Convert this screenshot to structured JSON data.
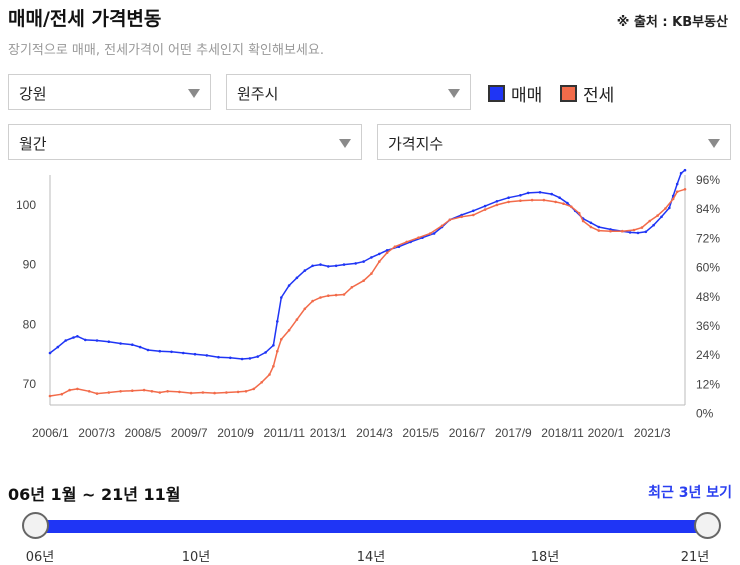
{
  "header": {
    "title": "매매/전세 가격변동",
    "source": "※ 출처 : KB부동산",
    "subtitle": "장기적으로 매매, 전세가격이 어떤 추세인지 확인해보세요."
  },
  "filters": {
    "region": "강원",
    "city": "원주시",
    "period": "월간",
    "metric": "가격지수"
  },
  "legend": [
    {
      "label": "매매",
      "color": "#1f35f5"
    },
    {
      "label": "전세",
      "color": "#f26b4a"
    }
  ],
  "chart_data": {
    "type": "line",
    "x_tick_labels": [
      "2006/1",
      "2007/3",
      "2008/5",
      "2009/7",
      "2010/9",
      "2011/11",
      "2013/1",
      "2014/3",
      "2015/5",
      "2016/7",
      "2017/9",
      "2018/11",
      "2020/1",
      "2021/3"
    ],
    "y_left_ticks": [
      "100",
      "90",
      "80",
      "70"
    ],
    "y_right_ticks": [
      "96%",
      "84%",
      "72%",
      "60%",
      "48%",
      "36%",
      "24%",
      "12%",
      "0%"
    ],
    "y_left_range": [
      66.5,
      105
    ],
    "grid": false,
    "series": [
      {
        "name": "매매",
        "color": "#1f35f5",
        "points": [
          [
            2006.0,
            75.2
          ],
          [
            2006.2,
            76.2
          ],
          [
            2006.4,
            77.3
          ],
          [
            2006.6,
            77.8
          ],
          [
            2006.7,
            78.0
          ],
          [
            2006.9,
            77.4
          ],
          [
            2007.2,
            77.3
          ],
          [
            2007.5,
            77.1
          ],
          [
            2007.8,
            76.8
          ],
          [
            2008.1,
            76.6
          ],
          [
            2008.3,
            76.2
          ],
          [
            2008.5,
            75.7
          ],
          [
            2008.8,
            75.5
          ],
          [
            2009.1,
            75.4
          ],
          [
            2009.4,
            75.2
          ],
          [
            2009.7,
            75.0
          ],
          [
            2010.0,
            74.8
          ],
          [
            2010.3,
            74.5
          ],
          [
            2010.6,
            74.4
          ],
          [
            2010.9,
            74.2
          ],
          [
            2011.1,
            74.3
          ],
          [
            2011.3,
            74.6
          ],
          [
            2011.5,
            75.3
          ],
          [
            2011.7,
            76.5
          ],
          [
            2011.8,
            80.5
          ],
          [
            2011.9,
            84.5
          ],
          [
            2012.1,
            86.5
          ],
          [
            2012.3,
            87.8
          ],
          [
            2012.5,
            89.0
          ],
          [
            2012.7,
            89.8
          ],
          [
            2012.9,
            90.0
          ],
          [
            2013.1,
            89.7
          ],
          [
            2013.3,
            89.8
          ],
          [
            2013.5,
            90.0
          ],
          [
            2013.8,
            90.2
          ],
          [
            2014.0,
            90.5
          ],
          [
            2014.2,
            91.2
          ],
          [
            2014.4,
            91.8
          ],
          [
            2014.6,
            92.4
          ],
          [
            2014.9,
            93.0
          ],
          [
            2015.2,
            93.8
          ],
          [
            2015.5,
            94.5
          ],
          [
            2015.8,
            95.2
          ],
          [
            2016.0,
            96.3
          ],
          [
            2016.2,
            97.5
          ],
          [
            2016.5,
            98.3
          ],
          [
            2016.8,
            99.0
          ],
          [
            2017.1,
            99.8
          ],
          [
            2017.4,
            100.6
          ],
          [
            2017.7,
            101.2
          ],
          [
            2018.0,
            101.6
          ],
          [
            2018.2,
            102.0
          ],
          [
            2018.5,
            102.1
          ],
          [
            2018.8,
            101.8
          ],
          [
            2019.0,
            101.2
          ],
          [
            2019.2,
            100.3
          ],
          [
            2019.4,
            99.0
          ],
          [
            2019.6,
            97.7
          ],
          [
            2019.8,
            97.0
          ],
          [
            2020.0,
            96.3
          ],
          [
            2020.3,
            95.9
          ],
          [
            2020.6,
            95.6
          ],
          [
            2020.8,
            95.4
          ],
          [
            2021.0,
            95.3
          ],
          [
            2021.2,
            95.5
          ],
          [
            2021.4,
            96.6
          ],
          [
            2021.6,
            98.0
          ],
          [
            2021.8,
            99.5
          ],
          [
            2021.9,
            101.5
          ],
          [
            2022.0,
            103.5
          ],
          [
            2022.1,
            105.3
          ],
          [
            2022.2,
            105.8
          ]
        ]
      },
      {
        "name": "전세",
        "color": "#f26b4a",
        "points": [
          [
            2006.0,
            68.0
          ],
          [
            2006.3,
            68.3
          ],
          [
            2006.5,
            69.0
          ],
          [
            2006.7,
            69.2
          ],
          [
            2007.0,
            68.8
          ],
          [
            2007.2,
            68.4
          ],
          [
            2007.5,
            68.6
          ],
          [
            2007.8,
            68.8
          ],
          [
            2008.1,
            68.9
          ],
          [
            2008.4,
            69.0
          ],
          [
            2008.6,
            68.8
          ],
          [
            2008.8,
            68.6
          ],
          [
            2009.0,
            68.8
          ],
          [
            2009.3,
            68.7
          ],
          [
            2009.6,
            68.5
          ],
          [
            2009.9,
            68.6
          ],
          [
            2010.2,
            68.5
          ],
          [
            2010.5,
            68.6
          ],
          [
            2010.8,
            68.7
          ],
          [
            2011.0,
            68.8
          ],
          [
            2011.2,
            69.2
          ],
          [
            2011.4,
            70.3
          ],
          [
            2011.6,
            71.6
          ],
          [
            2011.7,
            73.0
          ],
          [
            2011.8,
            75.5
          ],
          [
            2011.9,
            77.5
          ],
          [
            2012.1,
            79.0
          ],
          [
            2012.3,
            80.8
          ],
          [
            2012.5,
            82.6
          ],
          [
            2012.7,
            83.9
          ],
          [
            2012.9,
            84.5
          ],
          [
            2013.1,
            84.8
          ],
          [
            2013.3,
            84.9
          ],
          [
            2013.5,
            85.0
          ],
          [
            2013.7,
            86.2
          ],
          [
            2014.0,
            87.3
          ],
          [
            2014.2,
            88.5
          ],
          [
            2014.4,
            90.5
          ],
          [
            2014.6,
            92.0
          ],
          [
            2014.8,
            93.0
          ],
          [
            2015.1,
            93.8
          ],
          [
            2015.4,
            94.5
          ],
          [
            2015.7,
            95.2
          ],
          [
            2016.0,
            96.5
          ],
          [
            2016.2,
            97.5
          ],
          [
            2016.5,
            98.0
          ],
          [
            2016.8,
            98.3
          ],
          [
            2017.1,
            99.2
          ],
          [
            2017.4,
            100.0
          ],
          [
            2017.7,
            100.5
          ],
          [
            2018.0,
            100.7
          ],
          [
            2018.3,
            100.8
          ],
          [
            2018.6,
            100.8
          ],
          [
            2018.9,
            100.5
          ],
          [
            2019.1,
            100.2
          ],
          [
            2019.3,
            99.7
          ],
          [
            2019.5,
            98.6
          ],
          [
            2019.6,
            97.3
          ],
          [
            2019.8,
            96.3
          ],
          [
            2020.0,
            95.7
          ],
          [
            2020.3,
            95.6
          ],
          [
            2020.6,
            95.6
          ],
          [
            2020.9,
            95.8
          ],
          [
            2021.1,
            96.2
          ],
          [
            2021.3,
            97.3
          ],
          [
            2021.5,
            98.2
          ],
          [
            2021.7,
            99.4
          ],
          [
            2021.9,
            101.0
          ],
          [
            2022.0,
            102.2
          ],
          [
            2022.2,
            102.6
          ]
        ]
      }
    ]
  },
  "range": {
    "label": "06년 1월 ~ 21년 11월",
    "recent_button": "최근 3년 보기",
    "ticks": [
      "06년",
      "10년",
      "14년",
      "18년",
      "21년"
    ],
    "start_year": 2006,
    "end_year": 2021
  }
}
